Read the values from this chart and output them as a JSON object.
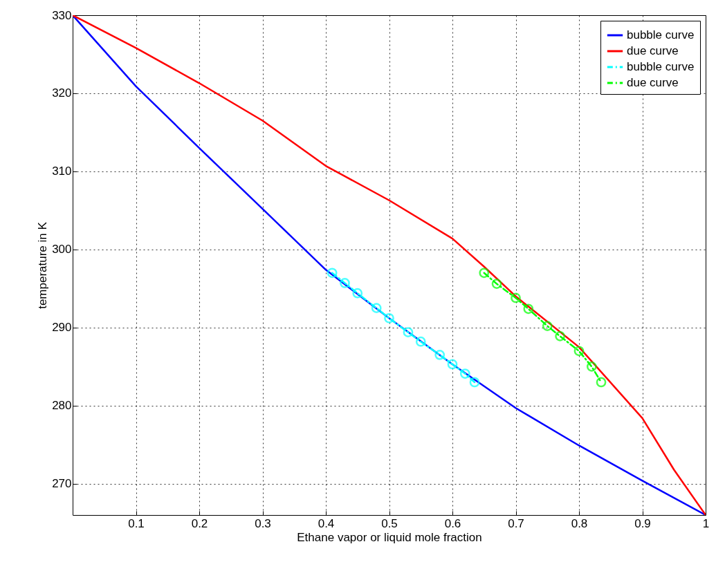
{
  "chart_data": {
    "type": "line",
    "xlabel": "Ethane vapor or liquid mole fraction",
    "ylabel": "temperature in K",
    "xlim": [
      0,
      1
    ],
    "xticks": [
      0.1,
      0.2,
      0.3,
      0.4,
      0.5,
      0.6,
      0.7,
      0.8,
      0.9,
      1
    ],
    "ylim": [
      266,
      330
    ],
    "yticks": [
      270,
      280,
      290,
      300,
      310,
      320,
      330
    ],
    "grid": true,
    "legend": "top right",
    "series": [
      {
        "name": "bubble curve",
        "color": "#0000ff",
        "line_style": "solid",
        "marker": "none",
        "x": [
          0,
          0.1,
          0.2,
          0.3,
          0.4,
          0.5,
          0.6,
          0.7,
          0.8,
          0.9,
          1
        ],
        "values": [
          330,
          320.9,
          313,
          305.2,
          297.4,
          291.2,
          285.3,
          279.7,
          274.9,
          270.4,
          266
        ]
      },
      {
        "name": "due curve",
        "color": "#ff0000",
        "line_style": "solid",
        "marker": "none",
        "x": [
          0,
          0.1,
          0.2,
          0.3,
          0.4,
          0.5,
          0.6,
          0.65,
          0.7,
          0.8,
          0.9,
          0.95,
          1
        ],
        "values": [
          330,
          325.8,
          321.3,
          316.5,
          310.7,
          306.3,
          301.4,
          297.8,
          294,
          287.5,
          278.4,
          271.8,
          266
        ]
      },
      {
        "name": "bubble curve",
        "color": "#00ffff",
        "line_style": "dashed",
        "marker": "circle",
        "x": [
          0.41,
          0.43,
          0.45,
          0.48,
          0.5,
          0.53,
          0.55,
          0.58,
          0.6,
          0.62,
          0.635
        ],
        "values": [
          297,
          295.7,
          294.4,
          292.5,
          291.2,
          289.4,
          288.2,
          286.5,
          285.3,
          284.1,
          283
        ]
      },
      {
        "name": "due curve",
        "color": "#00ff00",
        "line_style": "dashed",
        "marker": "circle",
        "x": [
          0.65,
          0.67,
          0.7,
          0.72,
          0.75,
          0.77,
          0.8,
          0.82,
          0.835
        ],
        "values": [
          297,
          295.6,
          293.8,
          292.4,
          290.2,
          288.9,
          287,
          285,
          283
        ]
      }
    ]
  }
}
